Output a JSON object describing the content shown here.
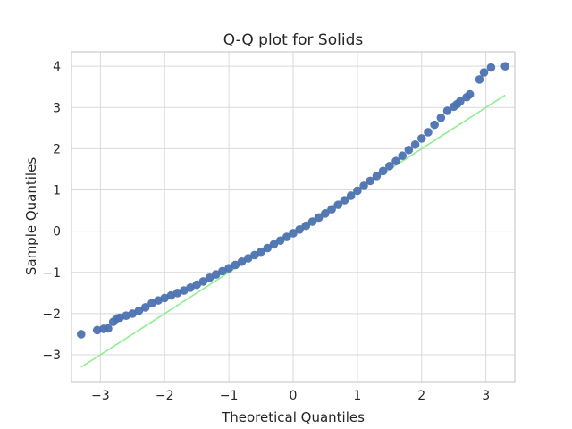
{
  "chart_data": {
    "type": "scatter",
    "title": "Q-Q plot for Solids",
    "xlabel": "Theoretical Quantiles",
    "ylabel": "Sample Quantiles",
    "xlim": [
      -3.45,
      3.45
    ],
    "ylim": [
      -3.65,
      4.35
    ],
    "xticks": [
      -3,
      -2,
      -1,
      0,
      1,
      2,
      3
    ],
    "yticks": [
      -3,
      -2,
      -1,
      0,
      1,
      2,
      3,
      4
    ],
    "xtick_labels": [
      "−3",
      "−2",
      "−1",
      "0",
      "1",
      "2",
      "3"
    ],
    "ytick_labels": [
      "−3",
      "−2",
      "−1",
      "0",
      "1",
      "2",
      "3",
      "4"
    ],
    "grid": true,
    "point_color": "#4c72b0",
    "line_color": "#90ee90",
    "reference_line": {
      "x": [
        -3.3,
        3.3
      ],
      "y": [
        -3.3,
        3.3
      ]
    },
    "series": [
      {
        "x": [
          -3.3,
          -3.05,
          -2.95,
          -2.88,
          -2.8,
          -2.75,
          -2.7,
          -2.6,
          -2.5,
          -2.4,
          -2.3,
          -2.2,
          -2.1,
          -2.0,
          -1.9,
          -1.8,
          -1.7,
          -1.6,
          -1.5,
          -1.4,
          -1.3,
          -1.2,
          -1.1,
          -1.0,
          -0.9,
          -0.8,
          -0.7,
          -0.6,
          -0.5,
          -0.4,
          -0.3,
          -0.2,
          -0.1,
          0.0,
          0.1,
          0.2,
          0.3,
          0.4,
          0.5,
          0.6,
          0.7,
          0.8,
          0.9,
          1.0,
          1.1,
          1.2,
          1.3,
          1.4,
          1.5,
          1.6,
          1.7,
          1.8,
          1.9,
          2.0,
          2.1,
          2.2,
          2.3,
          2.4,
          2.5,
          2.55,
          2.6,
          2.7,
          2.75,
          2.9,
          2.97,
          3.08,
          3.3
        ],
        "y": [
          -2.5,
          -2.4,
          -2.37,
          -2.36,
          -2.2,
          -2.12,
          -2.1,
          -2.05,
          -2.0,
          -1.93,
          -1.85,
          -1.75,
          -1.68,
          -1.62,
          -1.56,
          -1.5,
          -1.44,
          -1.37,
          -1.3,
          -1.22,
          -1.13,
          -1.05,
          -0.97,
          -0.9,
          -0.82,
          -0.74,
          -0.66,
          -0.58,
          -0.5,
          -0.41,
          -0.32,
          -0.23,
          -0.14,
          -0.05,
          0.04,
          0.13,
          0.23,
          0.33,
          0.43,
          0.53,
          0.64,
          0.75,
          0.86,
          0.98,
          1.1,
          1.22,
          1.34,
          1.46,
          1.58,
          1.7,
          1.83,
          1.97,
          2.1,
          2.25,
          2.4,
          2.58,
          2.75,
          2.92,
          3.02,
          3.08,
          3.15,
          3.25,
          3.32,
          3.68,
          3.85,
          3.97,
          4.0
        ]
      }
    ]
  }
}
